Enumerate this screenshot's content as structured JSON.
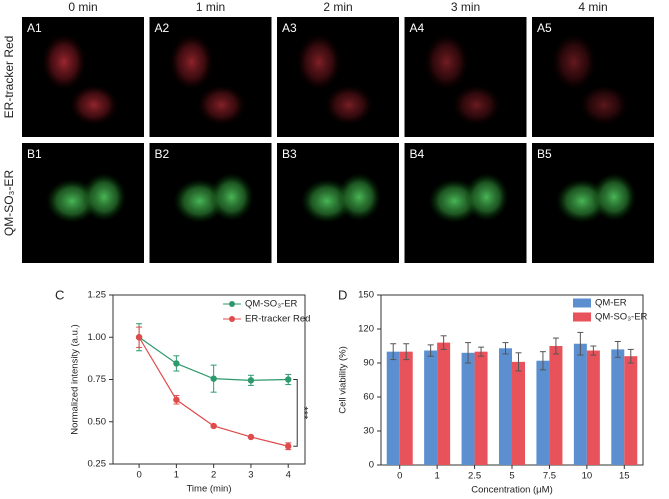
{
  "figure": {
    "column_headers": [
      "0 min",
      "1 min",
      "2 min",
      "3 min",
      "4 min"
    ],
    "row_labels": [
      "ER-tracker Red",
      "QM-SO₃-ER"
    ],
    "panel_labels": [
      [
        "A1",
        "A2",
        "A3",
        "A4",
        "A5"
      ],
      [
        "B1",
        "B2",
        "B3",
        "B4",
        "B5"
      ]
    ]
  },
  "chart_data": [
    {
      "type": "line",
      "panel_label": "C",
      "x_label": "Time (min)",
      "y_label": "Normalized intensity (a.u.)",
      "x": [
        0,
        1,
        2,
        3,
        4
      ],
      "series": [
        {
          "name": "QM-SO₃-ER",
          "color": "#2e9a6c",
          "values": [
            1.0,
            0.845,
            0.755,
            0.745,
            0.75
          ],
          "errors": [
            0.08,
            0.045,
            0.08,
            0.03,
            0.03
          ]
        },
        {
          "name": "ER-tracker Red",
          "color": "#e04a4a",
          "values": [
            1.0,
            0.63,
            0.475,
            0.41,
            0.355
          ],
          "errors": [
            0.06,
            0.025,
            0.005,
            0.005,
            0.02
          ]
        }
      ],
      "xlim": [
        -0.7,
        4.45
      ],
      "xticks": [
        0,
        1,
        2,
        3,
        4
      ],
      "ylim": [
        0.25,
        1.25
      ],
      "yticks": [
        0.25,
        {
          "value": 0.5,
          "label": "0.50"
        },
        0.75,
        {
          "value": 1.0,
          "label": "1.00"
        },
        1.25
      ],
      "annotation": "***",
      "legend": "top-right",
      "grid": false
    },
    {
      "type": "bar",
      "panel_label": "D",
      "x_label": "Concentration (μM)",
      "y_label": "Cell viability (%)",
      "categories": [
        "0",
        "1",
        "2.5",
        "5",
        "7.5",
        "10",
        "15"
      ],
      "series": [
        {
          "name": "QM-ER",
          "color": "#5b8fd0",
          "values": [
            100,
            101,
            99,
            103,
            92,
            107,
            102
          ],
          "errors": [
            7,
            5,
            9,
            5,
            8,
            10,
            7
          ]
        },
        {
          "name": "QM-SO₃-ER",
          "color": "#e8525a",
          "values": [
            100,
            108,
            100,
            91,
            105,
            101,
            96
          ],
          "errors": [
            7,
            6,
            4,
            8,
            7,
            4,
            6
          ]
        }
      ],
      "ylim": [
        0,
        150
      ],
      "yticks": [
        0,
        30,
        60,
        90,
        120,
        150
      ],
      "legend": "top-right",
      "grid": false
    }
  ]
}
